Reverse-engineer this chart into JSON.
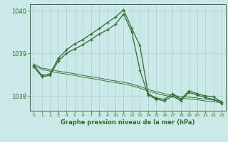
{
  "background_color": "#cde8e8",
  "grid_color": "#aacfcf",
  "line_color": "#2d6e2d",
  "xlabel": "Graphe pression niveau de la mer (hPa)",
  "ylim": [
    1037.65,
    1040.15
  ],
  "xlim": [
    -0.5,
    23.5
  ],
  "yticks": [
    1038,
    1039,
    1040
  ],
  "xticks": [
    0,
    1,
    2,
    3,
    4,
    5,
    6,
    7,
    8,
    9,
    10,
    11,
    12,
    13,
    14,
    15,
    16,
    17,
    18,
    19,
    20,
    21,
    22,
    23
  ],
  "series": [
    {
      "x": [
        0,
        1,
        2,
        3,
        4,
        5,
        6,
        7,
        8,
        9,
        10,
        11,
        12,
        13,
        14,
        15,
        16,
        17,
        18,
        19,
        20,
        21,
        22,
        23
      ],
      "y": [
        1038.72,
        1038.48,
        1038.52,
        1038.88,
        1039.08,
        1039.22,
        1039.32,
        1039.45,
        1039.58,
        1039.72,
        1039.85,
        1040.02,
        1039.58,
        1039.18,
        1038.05,
        1037.95,
        1037.92,
        1038.05,
        1037.92,
        1038.12,
        1038.05,
        1038.0,
        1037.98,
        1037.85
      ],
      "marked": true
    },
    {
      "x": [
        0,
        1,
        2,
        3,
        4,
        5,
        6,
        7,
        8,
        9,
        10,
        11,
        12,
        13,
        14,
        15,
        16,
        17,
        18,
        19,
        20,
        21,
        22,
        23
      ],
      "y": [
        1038.68,
        1038.45,
        1038.48,
        1038.82,
        1039.0,
        1039.1,
        1039.2,
        1039.32,
        1039.45,
        1039.55,
        1039.68,
        1039.92,
        1039.5,
        1038.6,
        1038.02,
        1037.92,
        1037.88,
        1038.0,
        1037.88,
        1038.08,
        1038.02,
        1037.96,
        1037.92,
        1037.82
      ],
      "marked": true
    },
    {
      "x": [
        0,
        1,
        2,
        3,
        4,
        5,
        6,
        7,
        8,
        9,
        10,
        11,
        12,
        13,
        14,
        15,
        16,
        17,
        18,
        19,
        20,
        21,
        22,
        23
      ],
      "y": [
        1038.75,
        1038.65,
        1038.62,
        1038.58,
        1038.55,
        1038.52,
        1038.48,
        1038.45,
        1038.42,
        1038.38,
        1038.35,
        1038.32,
        1038.28,
        1038.22,
        1038.15,
        1038.1,
        1038.05,
        1038.02,
        1037.98,
        1037.97,
        1037.95,
        1037.92,
        1037.9,
        1037.88
      ],
      "marked": false
    },
    {
      "x": [
        0,
        1,
        2,
        3,
        4,
        5,
        6,
        7,
        8,
        9,
        10,
        11,
        12,
        13,
        14,
        15,
        16,
        17,
        18,
        19,
        20,
        21,
        22,
        23
      ],
      "y": [
        1038.72,
        1038.62,
        1038.58,
        1038.54,
        1038.51,
        1038.48,
        1038.44,
        1038.41,
        1038.38,
        1038.34,
        1038.31,
        1038.28,
        1038.24,
        1038.18,
        1038.11,
        1038.06,
        1038.01,
        1037.98,
        1037.94,
        1037.93,
        1037.91,
        1037.88,
        1037.86,
        1037.84
      ],
      "marked": false
    }
  ]
}
